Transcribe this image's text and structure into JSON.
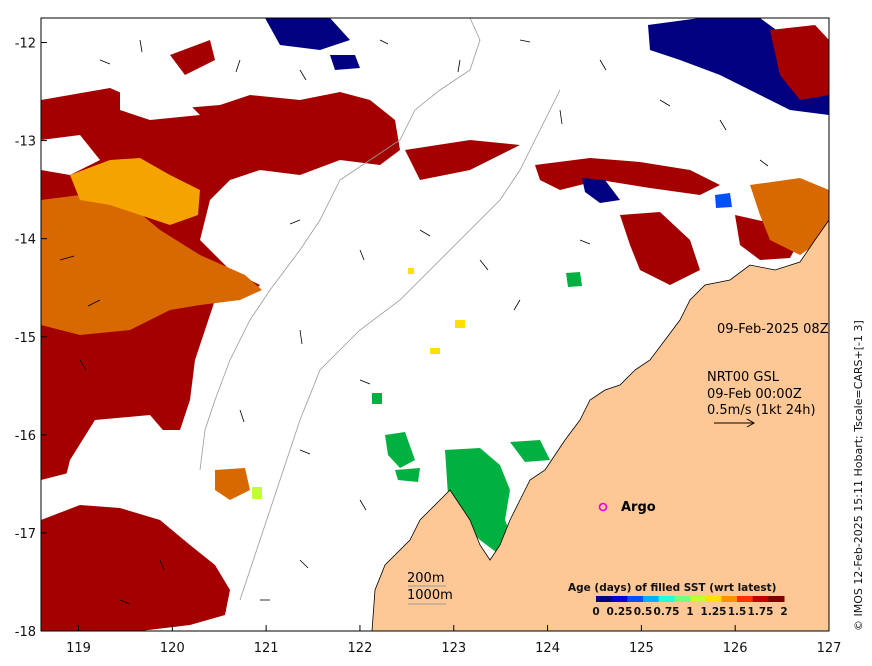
{
  "map": {
    "x_ticks": [
      "119",
      "120",
      "121",
      "122",
      "123",
      "124",
      "125",
      "126",
      "127"
    ],
    "y_ticks": [
      "-12",
      "-13",
      "-14",
      "-15",
      "-16",
      "-17",
      "-18"
    ],
    "lon_range": [
      118.6,
      127
    ],
    "lat_range": [
      -18,
      -11.75
    ]
  },
  "annotations": {
    "timestamp": "09-Feb-2025 08Z",
    "product": "NRT00 GSL",
    "product_time": "09-Feb 00:00Z",
    "vector_scale": "0.5m/s (1kt 24h)",
    "argo_label": "Argo",
    "depth_200": "200m",
    "depth_1000": "1000m"
  },
  "colorbar": {
    "title": "Age (days) of filled SST (wrt latest)",
    "ticks": [
      "0",
      "0.25",
      "0.5",
      "0.75",
      "1",
      "1.25",
      "1.5",
      "1.75",
      "2"
    ],
    "colors": [
      "#00007f",
      "#0000d8",
      "#0050ff",
      "#00b0ff",
      "#20ffd8",
      "#70ff80",
      "#c0ff30",
      "#ffe000",
      "#ff9000",
      "#ff3000",
      "#c00000",
      "#800000"
    ]
  },
  "credit": "© IMOS 12-Feb-2025 15:11 Hobart; Tscale=CARS+[-1 3]",
  "colors": {
    "land": "#fec896",
    "dark_red": "#a50000",
    "orange": "#d86800",
    "amber": "#f5a300",
    "green": "#00b040",
    "navy": "#000080"
  }
}
